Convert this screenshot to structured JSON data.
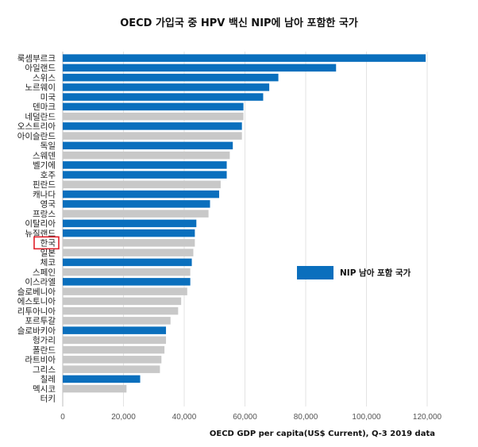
{
  "chart_data": {
    "type": "bar",
    "orientation": "horizontal",
    "title": "OECD 가입국 중 HPV 백신 NIP에 남아 포함한 국가",
    "xlabel": "OECD GDP per capita(US$ Current), Q-3 2019  data",
    "xlim": [
      0,
      125000
    ],
    "xticks": [
      "0",
      "20,000",
      "40,000",
      "60,000",
      "80,000",
      "100,000",
      "120,000"
    ],
    "xtick_values": [
      0,
      20000,
      40000,
      60000,
      80000,
      100000,
      120000
    ],
    "grid": true,
    "legend": {
      "label": "NIP 남아 포함 국가",
      "position": "right"
    },
    "colors": {
      "included": "#0a6fbd",
      "not_included": "#c8c8c8",
      "highlight": "#e0202a"
    },
    "highlighted_category": "한국",
    "categories": [
      "룩셈부르크",
      "아일랜드",
      "스위스",
      "노르웨이",
      "미국",
      "덴마크",
      "네덜란드",
      "오스트리아",
      "아이슬란드",
      "독일",
      "스웨덴",
      "벨기에",
      "호주",
      "핀란드",
      "캐나다",
      "영국",
      "프랑스",
      "이탈리아",
      "뉴질랜드",
      "한국",
      "일본",
      "체코",
      "스페인",
      "이스라엘",
      "슬로베니아",
      "에스토니아",
      "리투아니아",
      "포르투갈",
      "슬로바키아",
      "헝가리",
      "폴란드",
      "라트비아",
      "그리스",
      "칠레",
      "멕시코",
      "터키"
    ],
    "values": [
      119500,
      90000,
      71000,
      68000,
      66000,
      59500,
      59500,
      59000,
      59000,
      56000,
      55000,
      54000,
      54000,
      52000,
      51500,
      48500,
      48000,
      44000,
      43500,
      43500,
      43000,
      42500,
      42000,
      42000,
      41000,
      39000,
      38000,
      35500,
      34000,
      34000,
      33500,
      32500,
      32000,
      25500,
      21000,
      0
    ],
    "nip_included": [
      true,
      true,
      true,
      true,
      true,
      true,
      false,
      true,
      false,
      true,
      false,
      true,
      true,
      false,
      true,
      true,
      false,
      true,
      true,
      false,
      false,
      true,
      false,
      true,
      false,
      false,
      false,
      false,
      true,
      false,
      false,
      false,
      false,
      true,
      false,
      false
    ]
  }
}
